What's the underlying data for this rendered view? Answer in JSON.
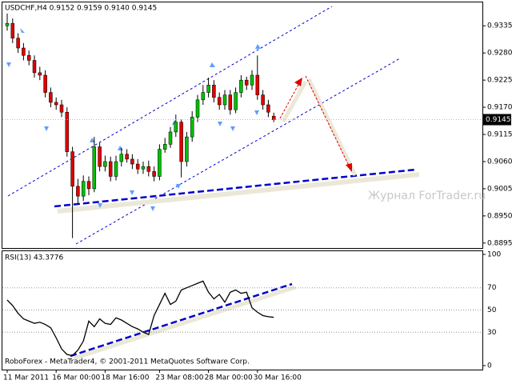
{
  "chart_data": [
    {
      "type": "candlestick",
      "title": "USDCHF,H4  0.9152 0.9159 0.9140 0.9145",
      "open": [
        0.9335,
        0.934,
        0.931,
        0.929,
        0.9275,
        0.9265,
        0.924,
        0.9235,
        0.92,
        0.918,
        0.9175,
        0.916,
        0.908,
        0.901,
        0.899,
        0.902,
        0.9005,
        0.909,
        0.905,
        0.906,
        0.903,
        0.906,
        0.9075,
        0.9065,
        0.9055,
        0.9045,
        0.905,
        0.904,
        0.903,
        0.9085,
        0.9095,
        0.912,
        0.914,
        0.906,
        0.911,
        0.915,
        0.9185,
        0.92,
        0.9215,
        0.919,
        0.9175,
        0.9195,
        0.9165,
        0.92,
        0.9225,
        0.9215,
        0.9235,
        0.9195,
        0.9175,
        0.9152
      ],
      "high": [
        0.936,
        0.935,
        0.932,
        0.93,
        0.9285,
        0.9275,
        0.9252,
        0.9245,
        0.921,
        0.919,
        0.9185,
        0.917,
        0.909,
        0.9025,
        0.9032,
        0.903,
        0.911,
        0.9098,
        0.9072,
        0.907,
        0.9072,
        0.9088,
        0.9085,
        0.9075,
        0.9065,
        0.906,
        0.9062,
        0.905,
        0.9095,
        0.9108,
        0.913,
        0.9155,
        0.9145,
        0.912,
        0.9162,
        0.9195,
        0.9215,
        0.923,
        0.9225,
        0.92,
        0.9205,
        0.9205,
        0.921,
        0.9235,
        0.9232,
        0.9245,
        0.9275,
        0.9205,
        0.9185,
        0.9159
      ],
      "low": [
        0.9325,
        0.93,
        0.928,
        0.9265,
        0.9255,
        0.923,
        0.9225,
        0.919,
        0.917,
        0.9165,
        0.915,
        0.907,
        0.8905,
        0.8975,
        0.898,
        0.8992,
        0.8998,
        0.904,
        0.904,
        0.902,
        0.9022,
        0.905,
        0.9058,
        0.9045,
        0.9035,
        0.9035,
        0.903,
        0.902,
        0.9022,
        0.9078,
        0.9088,
        0.911,
        0.9028,
        0.905,
        0.91,
        0.914,
        0.9175,
        0.919,
        0.918,
        0.9165,
        0.9165,
        0.9155,
        0.9158,
        0.919,
        0.9205,
        0.9205,
        0.9185,
        0.9165,
        0.915,
        0.914
      ],
      "close": [
        0.934,
        0.931,
        0.929,
        0.9275,
        0.9265,
        0.924,
        0.9235,
        0.92,
        0.918,
        0.9175,
        0.916,
        0.908,
        0.901,
        0.899,
        0.902,
        0.9005,
        0.909,
        0.905,
        0.906,
        0.903,
        0.906,
        0.9075,
        0.9065,
        0.9055,
        0.9045,
        0.905,
        0.904,
        0.903,
        0.9085,
        0.9095,
        0.912,
        0.914,
        0.906,
        0.911,
        0.915,
        0.9185,
        0.92,
        0.9215,
        0.919,
        0.9175,
        0.9195,
        0.9165,
        0.92,
        0.9225,
        0.9215,
        0.9235,
        0.9195,
        0.9175,
        0.916,
        0.9145
      ],
      "up_color": "#00c000",
      "down_color": "#e00000",
      "ylim": [
        0.8885,
        0.9384
      ],
      "yticks": [
        0.9335,
        {
          "value": 0.928,
          "label": "0.9280"
        },
        0.9225,
        {
          "value": 0.917,
          "label": "0.9170"
        },
        0.9115,
        {
          "value": 0.906,
          "label": "0.9060"
        },
        0.9005,
        {
          "value": 0.895,
          "label": "0.8950"
        },
        0.8895
      ],
      "last_price": 0.9145,
      "xticks": [
        {
          "value": 0,
          "label": "11 Mar 2011"
        },
        {
          "value": 9,
          "label": "16 Mar 00:00"
        },
        {
          "value": 18,
          "label": "18 Mar 16:00"
        },
        {
          "value": 28,
          "label": "23 Mar 08:00"
        },
        {
          "value": 37,
          "label": "28 Mar 00:00"
        },
        {
          "value": 46,
          "label": "30 Mar 16:00"
        }
      ],
      "watermark": "Журнал ForTrader.ru"
    },
    {
      "type": "line",
      "title": "RSI(13) 43.3776",
      "color": "#000000",
      "values": [
        59,
        54,
        47,
        42,
        40,
        38,
        39,
        37,
        34,
        25,
        15,
        10,
        9,
        14,
        22,
        40,
        35,
        42,
        38,
        37,
        43,
        41,
        38,
        35,
        33,
        30,
        28,
        45,
        55,
        65,
        55,
        58,
        68,
        70,
        72,
        74,
        76,
        66,
        60,
        64,
        57,
        66,
        68,
        65,
        66,
        52,
        48,
        45,
        44,
        43.3776
      ],
      "ylim": [
        0,
        100
      ],
      "yticks": [
        100,
        70,
        50,
        30,
        0
      ],
      "footer": "RoboForex - MetaTrader4, © 2001-2011 MetaQuotes Software Corp."
    }
  ]
}
